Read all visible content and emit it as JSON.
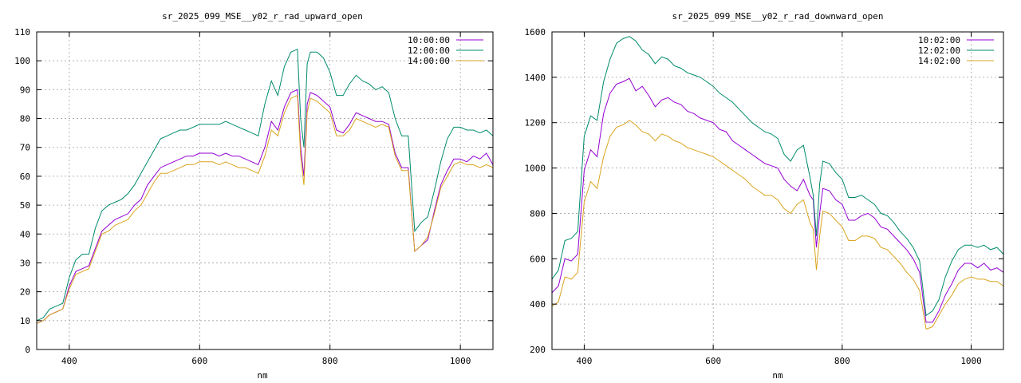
{
  "chart_data": [
    {
      "type": "line",
      "title": "sr_2025_099_MSE__y02_r_rad_upward_open",
      "xlabel": "nm",
      "ylabel": "",
      "xlim": [
        350,
        1050
      ],
      "ylim": [
        0,
        110
      ],
      "xticks": [
        400,
        600,
        800,
        1000
      ],
      "yticks": [
        0,
        10,
        20,
        30,
        40,
        50,
        60,
        70,
        80,
        90,
        100,
        110
      ],
      "grid": true,
      "legend_position": "top-right",
      "x": [
        350,
        360,
        370,
        380,
        390,
        400,
        410,
        420,
        430,
        440,
        450,
        460,
        470,
        480,
        490,
        500,
        510,
        520,
        530,
        540,
        550,
        560,
        570,
        580,
        590,
        600,
        610,
        620,
        630,
        640,
        650,
        660,
        670,
        680,
        690,
        700,
        710,
        720,
        730,
        740,
        750,
        755,
        760,
        765,
        770,
        780,
        790,
        800,
        810,
        820,
        830,
        840,
        850,
        860,
        870,
        880,
        890,
        900,
        910,
        920,
        930,
        940,
        950,
        960,
        970,
        980,
        990,
        1000,
        1010,
        1020,
        1030,
        1040,
        1050
      ],
      "series": [
        {
          "name": "10:00:00",
          "color": "#9400d3",
          "values": [
            9,
            10,
            12,
            13,
            14,
            22,
            27,
            28,
            29,
            35,
            41,
            43,
            45,
            46,
            47,
            50,
            52,
            57,
            60,
            63,
            64,
            65,
            66,
            67,
            67,
            68,
            68,
            68,
            67,
            68,
            67,
            67,
            66,
            65,
            64,
            70,
            79,
            76,
            84,
            89,
            90,
            70,
            60,
            85,
            89,
            88,
            86,
            84,
            76,
            75,
            78,
            82,
            81,
            80,
            79,
            79,
            78,
            68,
            63,
            63,
            34,
            36,
            38,
            48,
            57,
            62,
            66,
            66,
            65,
            67,
            66,
            68,
            64
          ]
        },
        {
          "name": "12:00:00",
          "color": "#008b6b",
          "values": [
            10,
            11,
            14,
            15,
            16,
            25,
            31,
            33,
            33,
            42,
            48,
            50,
            51,
            52,
            54,
            57,
            61,
            65,
            69,
            73,
            74,
            75,
            76,
            76,
            77,
            78,
            78,
            78,
            78,
            79,
            78,
            77,
            76,
            75,
            74,
            85,
            93,
            88,
            98,
            103,
            104,
            80,
            70,
            99,
            103,
            103,
            101,
            96,
            88,
            88,
            92,
            95,
            93,
            92,
            90,
            91,
            89,
            80,
            74,
            74,
            41,
            44,
            46,
            55,
            65,
            73,
            77,
            77,
            76,
            76,
            75,
            76,
            74
          ]
        },
        {
          "name": "14:00:00",
          "color": "#daa520",
          "values": [
            9,
            10,
            12,
            13,
            14,
            21,
            26,
            27,
            28,
            34,
            40,
            41,
            43,
            44,
            45,
            48,
            50,
            54,
            58,
            61,
            61,
            62,
            63,
            64,
            64,
            65,
            65,
            65,
            64,
            65,
            64,
            63,
            63,
            62,
            61,
            67,
            76,
            74,
            82,
            87,
            88,
            67,
            57,
            82,
            87,
            86,
            84,
            82,
            74,
            74,
            76,
            80,
            79,
            78,
            77,
            78,
            77,
            67,
            62,
            62,
            34,
            36,
            39,
            47,
            56,
            60,
            64,
            65,
            64,
            64,
            63,
            64,
            63
          ]
        }
      ]
    },
    {
      "type": "line",
      "title": "sr_2025_099_MSE__y02_r_rad_downward_open",
      "xlabel": "nm",
      "ylabel": "",
      "xlim": [
        350,
        1050
      ],
      "ylim": [
        200,
        1600
      ],
      "xticks": [
        400,
        600,
        800,
        1000
      ],
      "yticks": [
        200,
        400,
        600,
        800,
        1000,
        1200,
        1400,
        1600
      ],
      "grid": true,
      "legend_position": "top-right",
      "x": [
        350,
        360,
        370,
        380,
        390,
        400,
        410,
        420,
        430,
        440,
        450,
        460,
        470,
        480,
        490,
        500,
        510,
        520,
        530,
        540,
        550,
        560,
        570,
        580,
        590,
        600,
        610,
        620,
        630,
        640,
        650,
        660,
        670,
        680,
        690,
        700,
        710,
        720,
        730,
        740,
        750,
        755,
        760,
        765,
        770,
        780,
        790,
        800,
        810,
        820,
        830,
        840,
        850,
        860,
        870,
        880,
        890,
        900,
        910,
        920,
        930,
        940,
        950,
        960,
        970,
        980,
        990,
        1000,
        1010,
        1020,
        1030,
        1040,
        1050
      ],
      "series": [
        {
          "name": "10:02:00",
          "color": "#9400d3",
          "values": [
            450,
            480,
            600,
            590,
            620,
            990,
            1080,
            1050,
            1240,
            1330,
            1370,
            1380,
            1395,
            1340,
            1360,
            1320,
            1270,
            1300,
            1310,
            1290,
            1280,
            1250,
            1240,
            1220,
            1210,
            1200,
            1170,
            1160,
            1120,
            1100,
            1080,
            1060,
            1040,
            1020,
            1010,
            1000,
            950,
            920,
            900,
            950,
            880,
            860,
            650,
            800,
            910,
            900,
            860,
            840,
            770,
            770,
            790,
            800,
            780,
            740,
            730,
            700,
            670,
            640,
            600,
            540,
            320,
            320,
            370,
            440,
            490,
            550,
            580,
            580,
            560,
            580,
            550,
            560,
            540
          ]
        },
        {
          "name": "12:02:00",
          "color": "#008b6b",
          "values": [
            510,
            550,
            680,
            690,
            720,
            1140,
            1230,
            1210,
            1380,
            1480,
            1550,
            1570,
            1580,
            1560,
            1520,
            1500,
            1460,
            1490,
            1480,
            1450,
            1440,
            1420,
            1410,
            1400,
            1380,
            1360,
            1330,
            1310,
            1290,
            1260,
            1230,
            1200,
            1180,
            1160,
            1150,
            1130,
            1060,
            1030,
            1080,
            1100,
            960,
            880,
            700,
            930,
            1030,
            1020,
            980,
            950,
            870,
            870,
            880,
            860,
            840,
            800,
            790,
            760,
            720,
            690,
            650,
            590,
            350,
            370,
            420,
            520,
            590,
            640,
            660,
            660,
            650,
            660,
            640,
            650,
            620
          ]
        },
        {
          "name": "14:02:00",
          "color": "#daa520",
          "values": [
            390,
            410,
            520,
            510,
            540,
            850,
            940,
            910,
            1050,
            1140,
            1180,
            1190,
            1210,
            1190,
            1160,
            1150,
            1120,
            1150,
            1140,
            1120,
            1110,
            1090,
            1080,
            1070,
            1060,
            1050,
            1030,
            1010,
            990,
            970,
            950,
            920,
            900,
            880,
            880,
            860,
            820,
            800,
            840,
            860,
            760,
            730,
            550,
            700,
            810,
            800,
            770,
            740,
            680,
            680,
            700,
            700,
            690,
            650,
            640,
            610,
            580,
            540,
            510,
            460,
            290,
            300,
            350,
            400,
            440,
            490,
            510,
            520,
            510,
            510,
            500,
            500,
            480
          ]
        }
      ]
    }
  ]
}
